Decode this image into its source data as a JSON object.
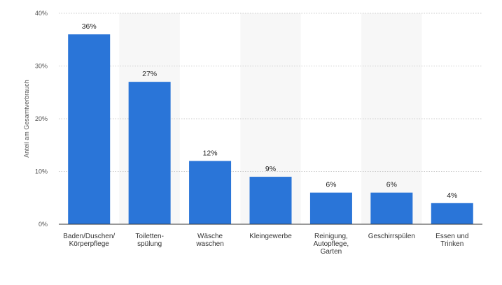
{
  "chart_data": {
    "type": "bar",
    "title": "",
    "xlabel": "",
    "ylabel": "Anteil am Gesamtverbrauch",
    "ylim": [
      0,
      40
    ],
    "yticks": [
      0,
      10,
      20,
      30,
      40
    ],
    "ytick_labels": [
      "0%",
      "10%",
      "20%",
      "30%",
      "40%"
    ],
    "grid": true,
    "categories": [
      [
        "Baden/Duschen/",
        "Körperpflege"
      ],
      [
        "Toiletten-",
        "spülung"
      ],
      [
        "Wäsche",
        "waschen"
      ],
      [
        "Kleingewerbe"
      ],
      [
        "Reinigung,",
        "Autopflege,",
        "Garten"
      ],
      [
        "Geschirrspülen"
      ],
      [
        "Essen und",
        "Trinken"
      ]
    ],
    "values": [
      36,
      27,
      12,
      9,
      6,
      6,
      4
    ],
    "value_labels": [
      "36%",
      "27%",
      "12%",
      "9%",
      "6%",
      "6%",
      "4%"
    ],
    "colors": {
      "bar": "#2a75d8",
      "band": "#f7f7f7",
      "grid": "#cccccc",
      "axis": "#333333"
    }
  }
}
